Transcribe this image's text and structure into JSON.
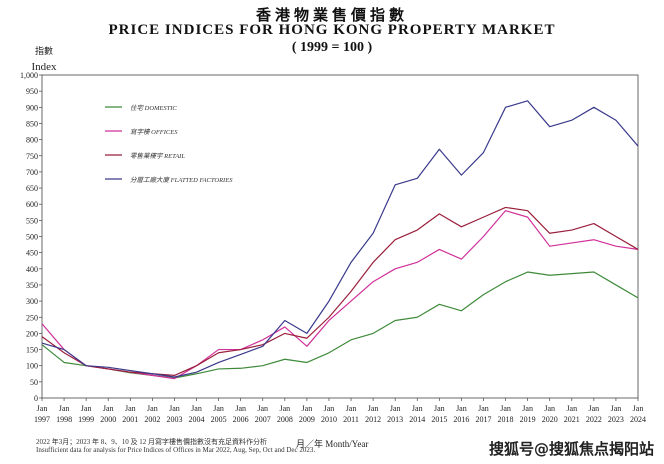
{
  "chart_data": {
    "type": "line",
    "title_zh": "香港物業售價指數",
    "title": "PRICE INDICES FOR HONG KONG PROPERTY MARKET",
    "subtitle": "( 1999 = 100 )",
    "ylabel_zh": "指數",
    "ylabel": "Index",
    "xlabel": "月／年   Month/Year",
    "ylim": [
      0,
      1000
    ],
    "yticks": [
      "0",
      "50",
      "100",
      "150",
      "200",
      "250",
      "300",
      "350",
      "400",
      "450",
      "500",
      "550",
      "600",
      "650",
      "700",
      "750",
      "800",
      "850",
      "900",
      "950",
      "1,000"
    ],
    "x": [
      1997,
      1998,
      1999,
      2000,
      2001,
      2002,
      2003,
      2004,
      2005,
      2006,
      2007,
      2008,
      2009,
      2010,
      2011,
      2012,
      2013,
      2014,
      2015,
      2016,
      2017,
      2018,
      2019,
      2020,
      2021,
      2022,
      2023,
      2024
    ],
    "series": [
      {
        "name": "住宅  DOMESTIC",
        "color": "#3f8a3a",
        "values": [
          165,
          110,
          100,
          90,
          78,
          70,
          62,
          75,
          90,
          92,
          100,
          120,
          110,
          140,
          180,
          200,
          240,
          250,
          290,
          270,
          320,
          360,
          390,
          380,
          385,
          390,
          350,
          310
        ]
      },
      {
        "name": "寫字樓  OFFICES",
        "color": "#d0309a",
        "values": [
          230,
          150,
          100,
          90,
          80,
          70,
          60,
          100,
          150,
          150,
          180,
          220,
          160,
          240,
          300,
          360,
          400,
          420,
          460,
          430,
          500,
          580,
          560,
          470,
          480,
          490,
          470,
          460
        ]
      },
      {
        "name": "零售業樓宇  RETAIL",
        "color": "#9a1f3c",
        "values": [
          190,
          140,
          100,
          90,
          80,
          75,
          70,
          100,
          140,
          150,
          165,
          200,
          185,
          250,
          330,
          420,
          490,
          520,
          570,
          530,
          560,
          590,
          580,
          510,
          520,
          540,
          500,
          460
        ]
      },
      {
        "name": "分層工廠大廈  FLATTED FACTORIES",
        "color": "#3a3a8c",
        "values": [
          170,
          150,
          100,
          95,
          85,
          75,
          65,
          80,
          110,
          135,
          160,
          240,
          200,
          300,
          420,
          510,
          660,
          680,
          770,
          690,
          760,
          900,
          920,
          840,
          860,
          900,
          860,
          780
        ]
      }
    ],
    "legend": "top-left"
  },
  "notes": {
    "zh": "2022 年3月；2023 年 8、9、10 及 12 月寫字樓售價指數沒有充足資料作分析",
    "en": "Insufficient data for analysis for Price Indices of Offices in Mar 2022, Aug, Sep, Oct and Dec 2023."
  },
  "watermark": "搜狐号@搜狐焦点揭阳站",
  "month_label": "Jan"
}
